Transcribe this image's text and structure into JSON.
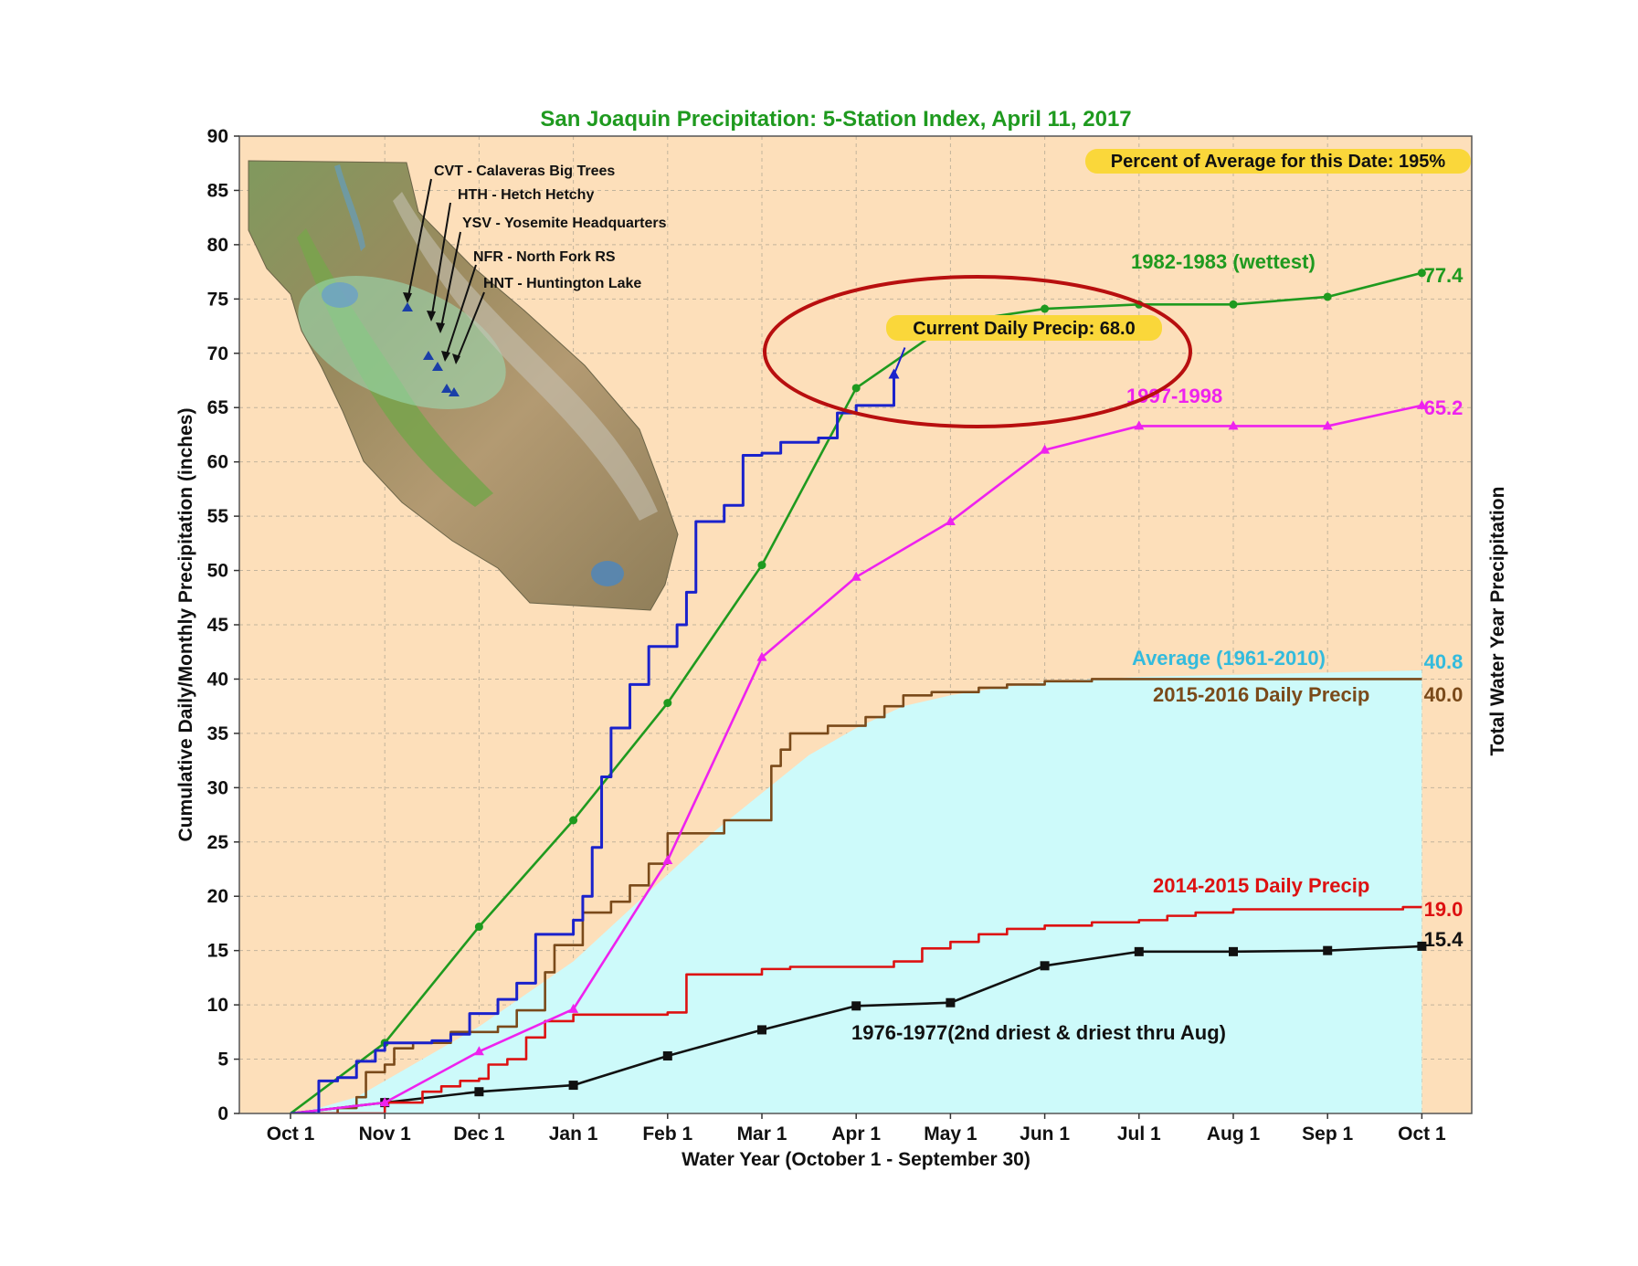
{
  "chart_data": {
    "type": "line",
    "title": "San Joaquin Precipitation: 5-Station Index, April 11, 2017",
    "xlabel": "Water Year (October 1 - September 30)",
    "ylabel": "Cumulative Daily/Monthly Precipitation (inches)",
    "ylabel_right": "Total Water Year Precipitation",
    "ylim": [
      0,
      90
    ],
    "yticks": [
      "0",
      "5",
      "10",
      "15",
      "20",
      "25",
      "30",
      "35",
      "40",
      "45",
      "50",
      "55",
      "60",
      "65",
      "70",
      "75",
      "80",
      "85",
      "90"
    ],
    "categories": [
      "Oct 1",
      "Nov 1",
      "Dec 1",
      "Jan 1",
      "Feb 1",
      "Mar 1",
      "Apr 1",
      "May 1",
      "Jun 1",
      "Jul 1",
      "Aug 1",
      "Sep 1",
      "Oct 1"
    ],
    "grid": true,
    "percent_of_average": "Percent of Average for this Date: 195%",
    "current_daily_precip": "Current Daily Precip: 68.0",
    "series": [
      {
        "name": "Average (1961-2010)",
        "color": "#cdfafa",
        "label_color": "#33bbdd",
        "end_label": "40.8",
        "kind": "area",
        "x": [
          0,
          0.3,
          0.7,
          1,
          1.3,
          1.7,
          2,
          2.5,
          3,
          3.5,
          4,
          4.5,
          5,
          5.5,
          6,
          6.5,
          7,
          7.5,
          8,
          8.5,
          9,
          10,
          11,
          12
        ],
        "y": [
          0,
          0.5,
          1.5,
          3,
          4.5,
          6.5,
          8,
          11,
          14,
          18,
          22,
          26,
          29.5,
          33,
          35.5,
          37.5,
          38.5,
          39.2,
          39.7,
          40,
          40.2,
          40.4,
          40.6,
          40.8
        ]
      },
      {
        "name": "1982-1983 (wettest)",
        "color": "#1f9a1f",
        "end_label": "77.4",
        "kind": "line-dots",
        "x": [
          0,
          1,
          2,
          3,
          4,
          5,
          6,
          7,
          8,
          9,
          10,
          11,
          12
        ],
        "y": [
          0,
          6.5,
          17.2,
          27,
          37.8,
          50.5,
          66.8,
          72.8,
          74.1,
          74.5,
          74.5,
          75.2,
          77.4
        ]
      },
      {
        "name": "1997-1998",
        "color": "#ee22ee",
        "end_label": "65.2",
        "kind": "line-triangles",
        "x": [
          0,
          1,
          2,
          3,
          4,
          5,
          6,
          7,
          8,
          9,
          10,
          11,
          12
        ],
        "y": [
          0,
          1,
          5.7,
          9.6,
          23.3,
          42,
          49.4,
          54.5,
          61.1,
          63.3,
          63.3,
          63.3,
          65.2
        ]
      },
      {
        "name": "2015-2016 Daily Precip",
        "color": "#7a4a1a",
        "end_label": "40.0",
        "kind": "step",
        "x": [
          0,
          0.5,
          0.7,
          0.8,
          1,
          1.1,
          1.3,
          1.5,
          1.7,
          2,
          2.2,
          2.4,
          2.6,
          2.7,
          2.8,
          3,
          3.1,
          3.2,
          3.4,
          3.6,
          3.8,
          4,
          4.1,
          4.4,
          4.6,
          4.8,
          5,
          5.1,
          5.2,
          5.3,
          5.5,
          5.7,
          6,
          6.1,
          6.3,
          6.5,
          6.8,
          7,
          7.3,
          7.6,
          8,
          8.5,
          9,
          12
        ],
        "y": [
          0,
          0.5,
          1.5,
          3.8,
          4.5,
          6,
          6.5,
          6.5,
          7.5,
          7.5,
          8,
          9.5,
          9.5,
          13,
          15.5,
          15.5,
          18.5,
          18.5,
          19.5,
          21,
          23,
          25.8,
          25.8,
          25.8,
          27,
          27,
          27,
          32,
          33.5,
          35,
          35,
          35.7,
          35.7,
          36.5,
          37.5,
          38.5,
          38.8,
          38.8,
          39.2,
          39.5,
          39.8,
          40,
          40,
          40
        ]
      },
      {
        "name": "2014-2015 Daily Precip",
        "color": "#dd1111",
        "end_label": "19.0",
        "kind": "step",
        "x": [
          0,
          0.9,
          1,
          1.4,
          1.6,
          1.8,
          2,
          2.1,
          2.3,
          2.5,
          2.7,
          3,
          3.5,
          4,
          4.2,
          4.5,
          5,
          5.3,
          5.6,
          6,
          6.4,
          6.7,
          7,
          7.3,
          7.6,
          8,
          8.5,
          9,
          9.3,
          9.6,
          10,
          11,
          11.8,
          12
        ],
        "y": [
          0,
          0,
          1,
          2,
          2.5,
          3,
          3.2,
          4.5,
          5,
          7,
          8.5,
          9.1,
          9.1,
          9.3,
          12.8,
          12.8,
          13.3,
          13.5,
          13.5,
          13.5,
          14,
          15.2,
          15.8,
          16.5,
          17,
          17.3,
          17.6,
          17.8,
          18.2,
          18.5,
          18.8,
          18.8,
          19,
          19
        ]
      },
      {
        "name": "1976-1977(2nd driest & driest thru Aug)",
        "color": "#111111",
        "end_label": "15.4",
        "kind": "line-squares",
        "x": [
          0,
          1,
          2,
          3,
          4,
          5,
          6,
          7,
          8,
          9,
          10,
          11,
          12
        ],
        "y": [
          0,
          1,
          2,
          2.6,
          5.3,
          7.7,
          9.9,
          10.2,
          13.6,
          14.9,
          14.9,
          15.0,
          15.4
        ]
      },
      {
        "name": "Current",
        "color": "#1a22cc",
        "kind": "step-current",
        "x": [
          0,
          0.3,
          0.5,
          0.7,
          0.9,
          1,
          1.3,
          1.5,
          1.7,
          1.9,
          2,
          2.2,
          2.4,
          2.6,
          2.8,
          3,
          3.1,
          3.2,
          3.3,
          3.4,
          3.5,
          3.6,
          3.8,
          4,
          4.1,
          4.2,
          4.3,
          4.4,
          4.6,
          4.8,
          5,
          5.2,
          5.4,
          5.6,
          5.8,
          6,
          6.2,
          6.4
        ],
        "y": [
          0,
          3,
          3.3,
          4.8,
          5.8,
          6.5,
          6.5,
          6.7,
          7.3,
          9.2,
          9.2,
          10.5,
          12,
          16.5,
          16.5,
          17.8,
          20,
          24.5,
          31,
          35.5,
          35.5,
          39.5,
          43,
          43,
          45,
          48,
          54.5,
          54.5,
          56,
          60.6,
          60.8,
          61.8,
          61.8,
          62.2,
          64.5,
          65.2,
          65.2,
          68.0
        ]
      }
    ]
  },
  "inset_map": {
    "stations": [
      "CVT - Calaveras Big Trees",
      "HTH - Hetch Hetchy",
      "YSV - Yosemite Headquarters",
      "NFR - North Fork RS",
      "HNT - Huntington Lake"
    ]
  }
}
